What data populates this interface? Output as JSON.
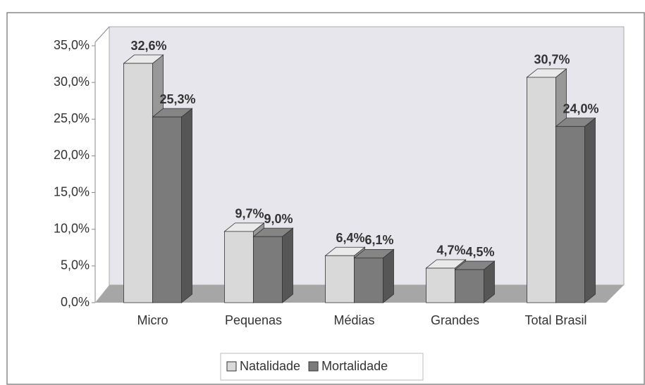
{
  "chart_data": {
    "type": "bar3d",
    "categories": [
      "Micro",
      "Pequenas",
      "Médias",
      "Grandes",
      "Total Brasil"
    ],
    "series": [
      {
        "name": "Natalidade",
        "color": "#d9d9d9",
        "values": [
          32.6,
          9.7,
          6.4,
          4.7,
          30.7
        ],
        "value_labels": [
          "32,6%",
          "9,7%",
          "6,4%",
          "4,7%",
          "30,7%"
        ]
      },
      {
        "name": "Mortalidade",
        "color": "#7b7b7b",
        "values": [
          25.3,
          9.0,
          6.1,
          4.5,
          24.0
        ],
        "value_labels": [
          "25,3%",
          "9,0%",
          "6,1%",
          "4,5%",
          "24,0%"
        ]
      }
    ],
    "ylim": [
      0,
      35
    ],
    "yticks": [
      {
        "value": 0,
        "label": "0,0%"
      },
      {
        "value": 5,
        "label": "5,0%"
      },
      {
        "value": 10,
        "label": "10,0%"
      },
      {
        "value": 15,
        "label": "15,0%"
      },
      {
        "value": 20,
        "label": "20,0%"
      },
      {
        "value": 25,
        "label": "25,0%"
      },
      {
        "value": 30,
        "label": "30,0%"
      },
      {
        "value": 35,
        "label": "35,0%"
      }
    ],
    "legend": "bottom"
  }
}
